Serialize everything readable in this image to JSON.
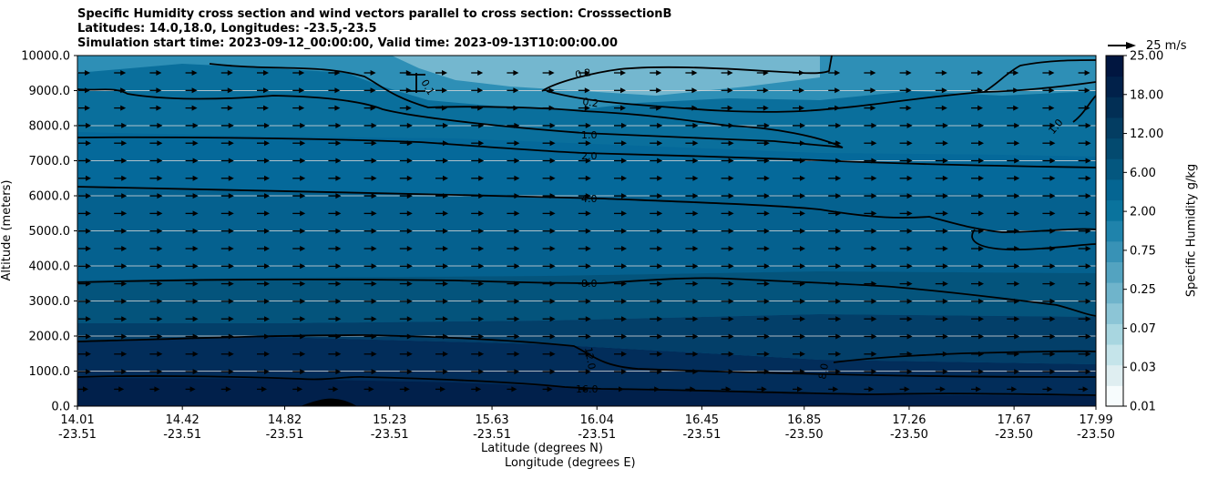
{
  "title": {
    "line1": "Specific Humidity cross section and wind vectors parallel to cross section: CrosssectionB",
    "line2": "Latitudes: 14.0,18.0, Longitudes: -23.5,-23.5",
    "line3": "Simulation start time: 2023-09-12_00:00:00, Valid time: 2023-09-13T10:00:00.00"
  },
  "quiver_key": "25 m/s",
  "colorbar_label": "Specific Humidity g/kg",
  "chart_data": {
    "type": "contourf",
    "ylabel": "Altitude (meters)",
    "xlabel_1": "Latitude (degrees N)",
    "xlabel_2": "Longitude (degrees E)",
    "ylim": [
      0,
      10000
    ],
    "grid": "horizontal",
    "y_ticks": [
      "0.0",
      "1000.0",
      "2000.0",
      "3000.0",
      "4000.0",
      "5000.0",
      "6000.0",
      "7000.0",
      "8000.0",
      "9000.0",
      "10000.0"
    ],
    "x_ticks": [
      {
        "lat": "14.01",
        "lon": "-23.51"
      },
      {
        "lat": "14.42",
        "lon": "-23.51"
      },
      {
        "lat": "14.82",
        "lon": "-23.51"
      },
      {
        "lat": "15.23",
        "lon": "-23.51"
      },
      {
        "lat": "15.63",
        "lon": "-23.51"
      },
      {
        "lat": "16.04",
        "lon": "-23.51"
      },
      {
        "lat": "16.45",
        "lon": "-23.51"
      },
      {
        "lat": "16.85",
        "lon": "-23.50"
      },
      {
        "lat": "17.26",
        "lon": "-23.50"
      },
      {
        "lat": "17.67",
        "lon": "-23.50"
      },
      {
        "lat": "17.99",
        "lon": "-23.50"
      }
    ],
    "colorbar_levels": [
      "0.01",
      "0.03",
      "0.07",
      "0.25",
      "0.75",
      "2.00",
      "6.00",
      "12.00",
      "18.00",
      "25.00"
    ],
    "contour_labels": [
      "0.1",
      "0.2",
      "0.2",
      "1.0",
      "1.0",
      "2.0",
      "4.0",
      "8.0",
      "8.0",
      "12.0",
      "16.0"
    ],
    "wind": "eastward arrows along cross section",
    "colormap": [
      "#f7fcfd",
      "#dfeef1",
      "#c5e4ea",
      "#a8d6e0",
      "#8cc5d6",
      "#6fb4cb",
      "#53a3c0",
      "#3892b6",
      "#1f83ab",
      "#0a739d",
      "#056592",
      "#04577f",
      "#034a6f",
      "#033d62",
      "#022f55",
      "#01214a",
      "#011640"
    ]
  }
}
